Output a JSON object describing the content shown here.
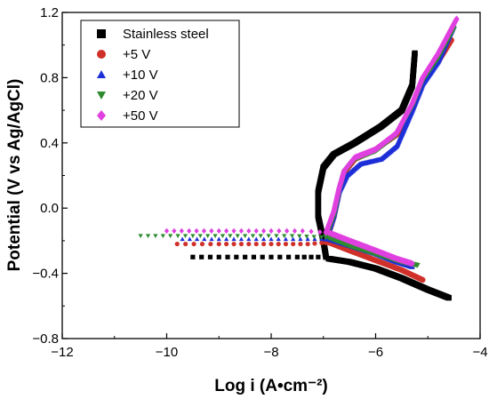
{
  "chart_data": {
    "type": "line",
    "xlabel": "Log i (A•cm⁻²)",
    "ylabel": "Potential (V vs Ag/AgCl)",
    "xlim": [
      -12,
      -4
    ],
    "ylim": [
      -0.8,
      1.2
    ],
    "x_ticks": [
      -12,
      -10,
      -8,
      -6,
      -4
    ],
    "y_ticks": [
      -0.8,
      -0.4,
      0.0,
      0.4,
      0.8,
      1.2
    ],
    "x_tick_labels": [
      "−12",
      "−10",
      "−8",
      "−6",
      "−4"
    ],
    "y_tick_labels": [
      "−0.8",
      "−0.4",
      "0.0",
      "0.4",
      "0.8",
      "1.2"
    ],
    "grid": false,
    "legend_position": "top-left",
    "series": [
      {
        "name": "Stainless steel",
        "color": "#000000",
        "marker": "square",
        "cathodic": [
          [
            -9.5,
            -0.3
          ],
          [
            -9.0,
            -0.3
          ],
          [
            -8.5,
            -0.3
          ],
          [
            -8.0,
            -0.3
          ],
          [
            -7.5,
            -0.3
          ],
          [
            -7.1,
            -0.3
          ],
          [
            -6.9,
            -0.31
          ]
        ],
        "cathodic2": [
          [
            -6.9,
            -0.31
          ],
          [
            -6.5,
            -0.33
          ],
          [
            -6.0,
            -0.37
          ],
          [
            -5.5,
            -0.43
          ],
          [
            -5.0,
            -0.5
          ],
          [
            -4.6,
            -0.55
          ]
        ],
        "anodic": [
          [
            -6.95,
            -0.3
          ],
          [
            -7.0,
            -0.2
          ],
          [
            -7.1,
            -0.05
          ],
          [
            -7.1,
            0.1
          ],
          [
            -7.0,
            0.25
          ],
          [
            -6.8,
            0.33
          ],
          [
            -6.4,
            0.4
          ],
          [
            -5.9,
            0.5
          ],
          [
            -5.5,
            0.6
          ],
          [
            -5.3,
            0.75
          ],
          [
            -5.25,
            0.95
          ]
        ]
      },
      {
        "name": "+5 V",
        "color": "#d0302a",
        "marker": "circle",
        "cathodic": [
          [
            -9.8,
            -0.22
          ],
          [
            -9.0,
            -0.22
          ],
          [
            -8.0,
            -0.22
          ],
          [
            -7.3,
            -0.22
          ],
          [
            -6.9,
            -0.21
          ]
        ],
        "cathodic2": [
          [
            -6.9,
            -0.21
          ],
          [
            -6.5,
            -0.26
          ],
          [
            -6.0,
            -0.32
          ],
          [
            -5.5,
            -0.38
          ],
          [
            -5.1,
            -0.44
          ]
        ],
        "anodic": [
          [
            -6.95,
            -0.21
          ],
          [
            -6.8,
            -0.05
          ],
          [
            -6.7,
            0.1
          ],
          [
            -6.6,
            0.22
          ],
          [
            -6.4,
            0.3
          ],
          [
            -6.0,
            0.36
          ],
          [
            -5.6,
            0.45
          ],
          [
            -5.3,
            0.62
          ],
          [
            -5.1,
            0.78
          ],
          [
            -4.8,
            0.9
          ],
          [
            -4.55,
            1.03
          ]
        ]
      },
      {
        "name": "+10 V",
        "color": "#1c2fd8",
        "marker": "triangle-up",
        "cathodic": [
          [
            -9.7,
            -0.19
          ],
          [
            -9.0,
            -0.19
          ],
          [
            -8.0,
            -0.19
          ],
          [
            -7.3,
            -0.19
          ],
          [
            -6.9,
            -0.19
          ]
        ],
        "cathodic2": [
          [
            -6.9,
            -0.19
          ],
          [
            -6.5,
            -0.23
          ],
          [
            -6.0,
            -0.28
          ],
          [
            -5.6,
            -0.33
          ],
          [
            -5.3,
            -0.36
          ]
        ],
        "anodic": [
          [
            -6.95,
            -0.19
          ],
          [
            -6.8,
            -0.05
          ],
          [
            -6.7,
            0.1
          ],
          [
            -6.55,
            0.2
          ],
          [
            -6.3,
            0.27
          ],
          [
            -5.9,
            0.3
          ],
          [
            -5.6,
            0.38
          ],
          [
            -5.3,
            0.6
          ],
          [
            -5.1,
            0.76
          ],
          [
            -4.8,
            0.9
          ],
          [
            -4.5,
            1.12
          ]
        ]
      },
      {
        "name": "+20 V",
        "color": "#2e8b2e",
        "marker": "triangle-down",
        "cathodic": [
          [
            -10.5,
            -0.17
          ],
          [
            -9.5,
            -0.17
          ],
          [
            -8.5,
            -0.17
          ],
          [
            -7.6,
            -0.17
          ],
          [
            -6.9,
            -0.18
          ]
        ],
        "cathodic2": [
          [
            -6.9,
            -0.18
          ],
          [
            -6.5,
            -0.23
          ],
          [
            -6.0,
            -0.28
          ],
          [
            -5.5,
            -0.33
          ],
          [
            -5.2,
            -0.35
          ]
        ],
        "anodic": [
          [
            -6.95,
            -0.18
          ],
          [
            -6.8,
            -0.05
          ],
          [
            -6.7,
            0.1
          ],
          [
            -6.6,
            0.22
          ],
          [
            -6.4,
            0.3
          ],
          [
            -6.0,
            0.35
          ],
          [
            -5.6,
            0.45
          ],
          [
            -5.3,
            0.62
          ],
          [
            -5.1,
            0.78
          ],
          [
            -4.8,
            0.92
          ],
          [
            -4.5,
            1.1
          ]
        ]
      },
      {
        "name": "+50 V",
        "color": "#e040e0",
        "marker": "diamond",
        "cathodic": [
          [
            -10.0,
            -0.14
          ],
          [
            -9.0,
            -0.14
          ],
          [
            -8.0,
            -0.14
          ],
          [
            -7.4,
            -0.14
          ],
          [
            -6.9,
            -0.15
          ]
        ],
        "cathodic2": [
          [
            -6.9,
            -0.15
          ],
          [
            -6.5,
            -0.2
          ],
          [
            -6.0,
            -0.26
          ],
          [
            -5.6,
            -0.31
          ],
          [
            -5.3,
            -0.34
          ]
        ],
        "anodic": [
          [
            -6.95,
            -0.15
          ],
          [
            -6.8,
            -0.02
          ],
          [
            -6.7,
            0.12
          ],
          [
            -6.6,
            0.23
          ],
          [
            -6.4,
            0.31
          ],
          [
            -6.0,
            0.36
          ],
          [
            -5.6,
            0.46
          ],
          [
            -5.3,
            0.64
          ],
          [
            -5.1,
            0.8
          ],
          [
            -4.8,
            0.95
          ],
          [
            -4.45,
            1.16
          ]
        ]
      }
    ]
  }
}
